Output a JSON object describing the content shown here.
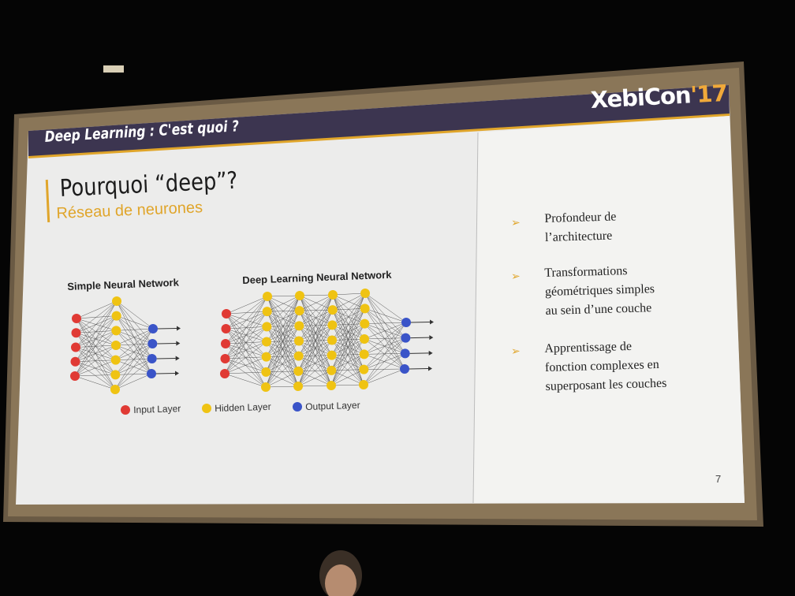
{
  "slide": {
    "header_title": "Deep Learning : C'est quoi ?",
    "logo_main": "XebiCon",
    "logo_accent": "'17",
    "title": "Pourquoi “deep”?",
    "subtitle": "Réseau de neurones",
    "page_number": "7"
  },
  "diagram": {
    "simple_label": "Simple Neural Network",
    "deep_label": "Deep Learning Neural Network",
    "legend": {
      "input": "Input Layer",
      "hidden": "Hidden Layer",
      "output": "Output Layer"
    },
    "colors": {
      "input": "#e03a34",
      "hidden": "#efc313",
      "output": "#3a54c8"
    }
  },
  "bullets": [
    [
      "Profondeur de",
      "l’architecture"
    ],
    [
      "Transformations",
      "géométriques simples",
      "au sein d’une couche"
    ],
    [
      "Apprentissage de",
      "fonction complexes en",
      "superposant les couches"
    ]
  ]
}
